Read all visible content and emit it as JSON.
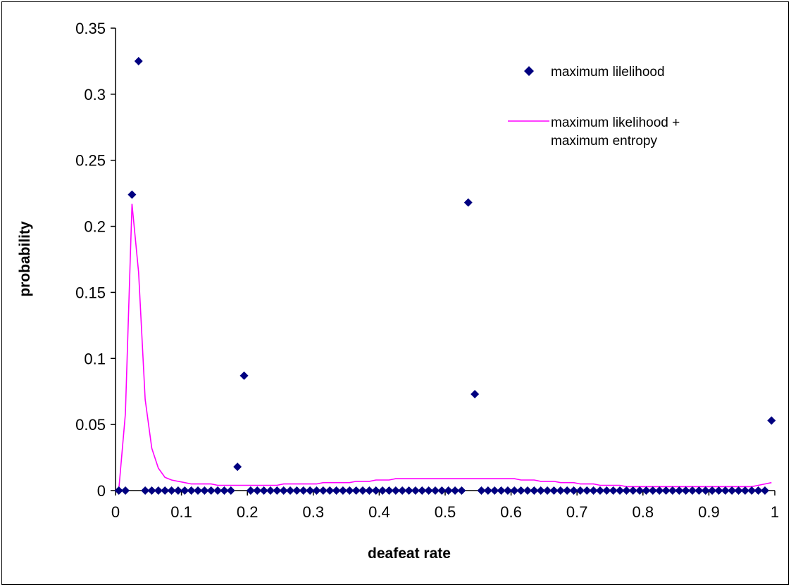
{
  "chart_data": {
    "type": "scatter",
    "xlabel": "deafeat rate",
    "ylabel": "probability",
    "xlim": [
      0,
      1
    ],
    "ylim": [
      0,
      0.35
    ],
    "x_ticks": [
      "0",
      "0.1",
      "0.2",
      "0.3",
      "0.4",
      "0.5",
      "0.6",
      "0.7",
      "0.8",
      "0.9",
      "1"
    ],
    "y_ticks": [
      "0",
      "0.05",
      "0.1",
      "0.15",
      "0.2",
      "0.25",
      "0.3",
      "0.35"
    ],
    "grid": false,
    "legend_position": "top-right",
    "colors": {
      "scatter": "#000080",
      "line": "#FF00FF",
      "axis": "#000000"
    },
    "series": [
      {
        "name": "maximum lilelihood",
        "kind": "scatter",
        "x": [
          0.005,
          0.015,
          0.025,
          0.035,
          0.045,
          0.055,
          0.065,
          0.075,
          0.085,
          0.095,
          0.105,
          0.115,
          0.125,
          0.135,
          0.145,
          0.155,
          0.165,
          0.175,
          0.185,
          0.195,
          0.205,
          0.215,
          0.225,
          0.235,
          0.245,
          0.255,
          0.265,
          0.275,
          0.285,
          0.295,
          0.305,
          0.315,
          0.325,
          0.335,
          0.345,
          0.355,
          0.365,
          0.375,
          0.385,
          0.395,
          0.405,
          0.415,
          0.425,
          0.435,
          0.445,
          0.455,
          0.465,
          0.475,
          0.485,
          0.495,
          0.505,
          0.515,
          0.525,
          0.535,
          0.545,
          0.555,
          0.565,
          0.575,
          0.585,
          0.595,
          0.605,
          0.615,
          0.625,
          0.635,
          0.645,
          0.655,
          0.665,
          0.675,
          0.685,
          0.695,
          0.705,
          0.715,
          0.725,
          0.735,
          0.745,
          0.755,
          0.765,
          0.775,
          0.785,
          0.795,
          0.805,
          0.815,
          0.825,
          0.835,
          0.845,
          0.855,
          0.865,
          0.875,
          0.885,
          0.895,
          0.905,
          0.915,
          0.925,
          0.935,
          0.945,
          0.955,
          0.965,
          0.975,
          0.985,
          0.995
        ],
        "y": [
          0,
          0,
          0.224,
          0.325,
          0,
          0,
          0,
          0,
          0,
          0,
          0,
          0,
          0,
          0,
          0,
          0,
          0,
          0,
          0.018,
          0.087,
          0,
          0,
          0,
          0,
          0,
          0,
          0,
          0,
          0,
          0,
          0,
          0,
          0,
          0,
          0,
          0,
          0,
          0,
          0,
          0,
          0,
          0,
          0,
          0,
          0,
          0,
          0,
          0,
          0,
          0,
          0,
          0,
          0,
          0.218,
          0.073,
          0,
          0,
          0,
          0,
          0,
          0,
          0,
          0,
          0,
          0,
          0,
          0,
          0,
          0,
          0,
          0,
          0,
          0,
          0,
          0,
          0,
          0,
          0,
          0,
          0,
          0,
          0,
          0,
          0,
          0,
          0,
          0,
          0,
          0,
          0,
          0,
          0,
          0,
          0,
          0,
          0,
          0,
          0,
          0,
          0.053
        ]
      },
      {
        "name": "maximum likelihood + maximum entropy",
        "kind": "line",
        "x": [
          0.005,
          0.015,
          0.025,
          0.035,
          0.045,
          0.055,
          0.065,
          0.075,
          0.085,
          0.095,
          0.105,
          0.115,
          0.125,
          0.135,
          0.145,
          0.155,
          0.165,
          0.175,
          0.185,
          0.195,
          0.205,
          0.215,
          0.225,
          0.235,
          0.245,
          0.255,
          0.265,
          0.275,
          0.285,
          0.295,
          0.305,
          0.315,
          0.325,
          0.335,
          0.345,
          0.355,
          0.365,
          0.375,
          0.385,
          0.395,
          0.405,
          0.415,
          0.425,
          0.435,
          0.445,
          0.455,
          0.465,
          0.475,
          0.485,
          0.495,
          0.505,
          0.515,
          0.525,
          0.535,
          0.545,
          0.555,
          0.565,
          0.575,
          0.585,
          0.595,
          0.605,
          0.615,
          0.625,
          0.635,
          0.645,
          0.655,
          0.665,
          0.675,
          0.685,
          0.695,
          0.705,
          0.715,
          0.725,
          0.735,
          0.745,
          0.755,
          0.765,
          0.775,
          0.785,
          0.795,
          0.805,
          0.815,
          0.825,
          0.835,
          0.845,
          0.855,
          0.865,
          0.875,
          0.885,
          0.895,
          0.905,
          0.915,
          0.925,
          0.935,
          0.945,
          0.955,
          0.965,
          0.975,
          0.985,
          0.995
        ],
        "y": [
          0.001,
          0.058,
          0.217,
          0.165,
          0.069,
          0.032,
          0.017,
          0.01,
          0.008,
          0.007,
          0.006,
          0.005,
          0.005,
          0.005,
          0.005,
          0.004,
          0.004,
          0.004,
          0.004,
          0.004,
          0.004,
          0.004,
          0.004,
          0.004,
          0.004,
          0.005,
          0.005,
          0.005,
          0.005,
          0.005,
          0.005,
          0.006,
          0.006,
          0.006,
          0.006,
          0.006,
          0.007,
          0.007,
          0.007,
          0.008,
          0.008,
          0.008,
          0.009,
          0.009,
          0.009,
          0.009,
          0.009,
          0.009,
          0.009,
          0.009,
          0.009,
          0.009,
          0.009,
          0.009,
          0.009,
          0.009,
          0.009,
          0.009,
          0.009,
          0.009,
          0.009,
          0.008,
          0.008,
          0.008,
          0.007,
          0.007,
          0.007,
          0.006,
          0.006,
          0.006,
          0.005,
          0.005,
          0.005,
          0.004,
          0.004,
          0.004,
          0.004,
          0.003,
          0.003,
          0.003,
          0.003,
          0.003,
          0.003,
          0.003,
          0.003,
          0.003,
          0.003,
          0.003,
          0.003,
          0.003,
          0.003,
          0.003,
          0.003,
          0.003,
          0.003,
          0.003,
          0.003,
          0.004,
          0.005,
          0.006
        ]
      }
    ],
    "legend": {
      "scatter_label": "maximum lilelihood",
      "line_label_1": "maximum likelihood +",
      "line_label_2": "maximum entropy"
    }
  }
}
